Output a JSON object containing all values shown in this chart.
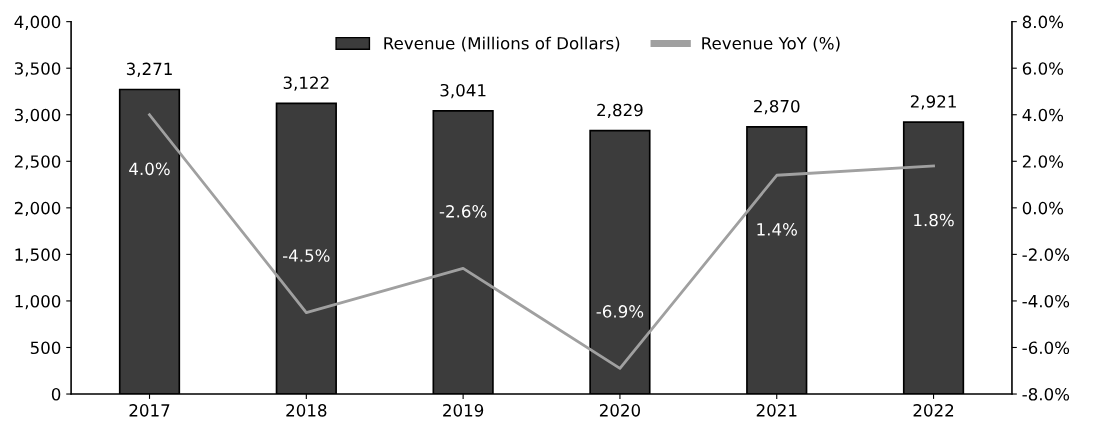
{
  "chart_data": {
    "type": "bar",
    "categories": [
      "2017",
      "2018",
      "2019",
      "2020",
      "2021",
      "2022"
    ],
    "series": [
      {
        "name": "Revenue (Millions of Dollars)",
        "color": "#3c3c3c",
        "values": [
          3271,
          3122,
          3041,
          2829,
          2870,
          2921
        ],
        "value_labels": [
          "3,271",
          "3,122",
          "3,041",
          "2,829",
          "2,870",
          "2,921"
        ]
      },
      {
        "name": "Revenue YoY (%)",
        "type": "line",
        "axis": "y2",
        "color": "#a0a0a0",
        "values": [
          4.0,
          -4.5,
          -2.6,
          -6.9,
          1.4,
          1.8
        ],
        "value_labels": [
          "4.0%",
          "-4.5%",
          "-2.6%",
          "-6.9%",
          "1.4%",
          "1.8%"
        ]
      }
    ],
    "ylim": [
      0,
      4000
    ],
    "yticks": [
      0,
      500,
      {
        "value": 1000,
        "label": "1,000"
      },
      {
        "value": 1500,
        "label": "1,500"
      },
      {
        "value": 2000,
        "label": "2,000"
      },
      {
        "value": 2500,
        "label": "2,500"
      },
      {
        "value": 3000,
        "label": "3,000"
      },
      {
        "value": 3500,
        "label": "3,500"
      },
      {
        "value": 4000,
        "label": "4,000"
      }
    ],
    "y2lim": [
      -8,
      8
    ],
    "y2ticks": [
      {
        "value": -8,
        "label": "-8.0%"
      },
      {
        "value": -6,
        "label": "-6.0%"
      },
      {
        "value": -4,
        "label": "-4.0%"
      },
      {
        "value": -2,
        "label": "-2.0%"
      },
      {
        "value": 0,
        "label": "0.0%"
      },
      {
        "value": 2,
        "label": "2.0%"
      },
      {
        "value": 4,
        "label": "4.0%"
      },
      {
        "value": 6,
        "label": "6.0%"
      },
      {
        "value": 8,
        "label": "8.0%"
      }
    ],
    "legend": "top",
    "grid": false
  }
}
